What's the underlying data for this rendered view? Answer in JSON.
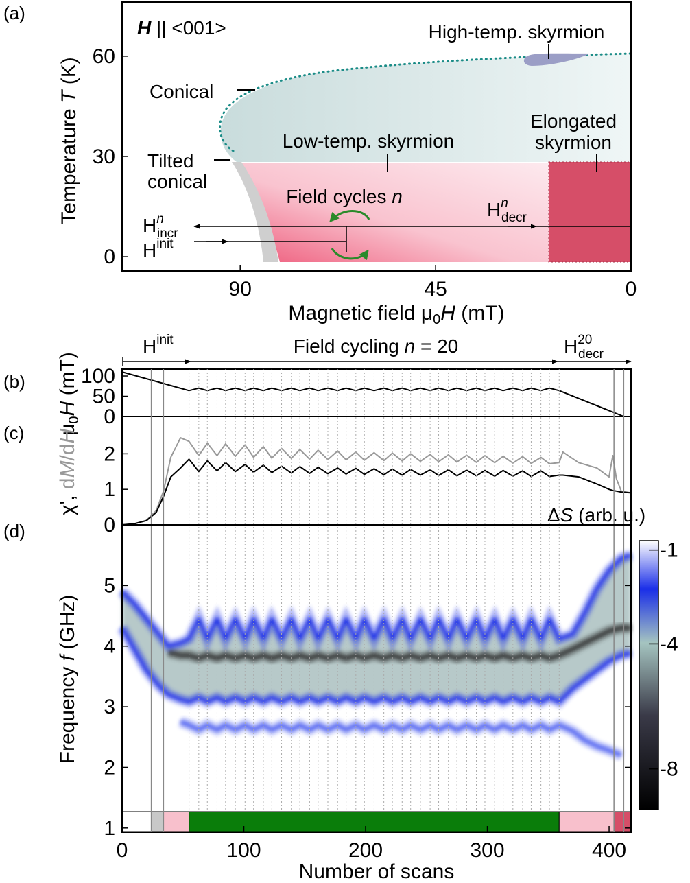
{
  "chart_data": [
    {
      "type": "phase-diagram",
      "panel": "(a)",
      "xlabel": [
        "Magnetic field μ",
        "0",
        "H",
        " (mT)"
      ],
      "ylabel": [
        "Temperature ",
        "T",
        " (K)"
      ],
      "xlim": [
        117.2,
        0
      ],
      "xticks": [
        90,
        45,
        0
      ],
      "ylim": [
        -4.3,
        76.2
      ],
      "yticks": [
        0,
        30,
        60
      ],
      "annotations": {
        "field_direction": [
          "H",
          " || <001>"
        ],
        "high_temp_skyrmion": "High-temp. skyrmion",
        "conical": "Conical",
        "low_temp_skyrmion": "Low-temp. skyrmion",
        "elongated_skyrmion": [
          "Elongated",
          "skyrmion"
        ],
        "tilted_conical": [
          "Tilted",
          "conical"
        ],
        "field_cycles": [
          "Field cycles ",
          "n"
        ],
        "h_incr": {
          "base": "H",
          "sup": "n",
          "sub": "incr"
        },
        "h_init": {
          "base": "H",
          "sup": "init"
        },
        "h_decr": {
          "base": "H",
          "sup": "n",
          "sub": "decr"
        }
      }
    },
    {
      "type": "line",
      "panel": "(b)",
      "ylabel": [
        "μ",
        "0",
        "H",
        " (mT)"
      ],
      "stages": [
        {
          "base": "H",
          "sup": "init"
        },
        [
          "Field cycling ",
          "n",
          " = 20"
        ],
        {
          "base": "H",
          "sup": "20",
          "sub": "decr"
        }
      ],
      "xlim": [
        0,
        418
      ],
      "ylim": [
        0,
        117
      ],
      "yticks": [
        0,
        50,
        100
      ],
      "color": "#000000",
      "x": [
        0,
        55,
        63,
        70,
        78,
        85,
        93,
        101,
        108,
        116,
        123,
        131,
        139,
        146,
        154,
        161,
        169,
        177,
        184,
        192,
        199,
        207,
        215,
        222,
        230,
        237,
        245,
        253,
        260,
        268,
        275,
        283,
        291,
        298,
        306,
        313,
        321,
        329,
        336,
        344,
        351,
        359,
        412
      ],
      "values": [
        110,
        64,
        70,
        64,
        70,
        64,
        70,
        64,
        70,
        64,
        70,
        64,
        70,
        64,
        70,
        64,
        70,
        64,
        70,
        64,
        70,
        64,
        70,
        64,
        70,
        64,
        70,
        64,
        70,
        64,
        70,
        64,
        70,
        64,
        70,
        64,
        70,
        64,
        70,
        64,
        70,
        64,
        0
      ]
    },
    {
      "type": "line",
      "panel": "(c)",
      "ylabel": [
        "χ', ",
        "d",
        "M",
        "/d",
        "H"
      ],
      "xlim": [
        0,
        418
      ],
      "ylim": [
        0,
        3.05
      ],
      "yticks": [
        0,
        1,
        2
      ],
      "x": [
        0,
        10,
        20,
        28,
        34,
        40,
        48,
        55,
        63,
        70,
        78,
        85,
        93,
        101,
        108,
        116,
        123,
        131,
        139,
        146,
        154,
        161,
        169,
        177,
        184,
        192,
        199,
        207,
        215,
        222,
        230,
        237,
        245,
        253,
        260,
        268,
        275,
        283,
        291,
        298,
        306,
        313,
        321,
        329,
        336,
        344,
        351,
        359,
        362,
        375,
        390,
        400,
        403,
        406,
        410,
        418
      ],
      "series": [
        {
          "color": "#000000",
          "values": [
            0,
            0.03,
            0.12,
            0.35,
            0.8,
            1.35,
            1.6,
            1.85,
            1.5,
            1.8,
            1.52,
            1.75,
            1.5,
            1.7,
            1.48,
            1.68,
            1.47,
            1.65,
            1.46,
            1.64,
            1.45,
            1.62,
            1.44,
            1.6,
            1.43,
            1.59,
            1.42,
            1.58,
            1.41,
            1.57,
            1.4,
            1.56,
            1.4,
            1.55,
            1.39,
            1.55,
            1.38,
            1.54,
            1.38,
            1.53,
            1.37,
            1.53,
            1.37,
            1.52,
            1.36,
            1.52,
            1.36,
            1.4,
            1.4,
            1.35,
            1.15,
            1.0,
            0.97,
            0.95,
            0.92,
            0.9
          ]
        },
        {
          "color": "#999999",
          "values": [
            0,
            0.03,
            0.13,
            0.4,
            0.95,
            1.9,
            2.45,
            2.35,
            1.95,
            2.3,
            1.95,
            2.28,
            1.93,
            2.25,
            1.9,
            2.2,
            1.88,
            2.15,
            1.87,
            2.12,
            1.85,
            2.1,
            1.84,
            2.08,
            1.83,
            2.05,
            1.82,
            2.03,
            1.81,
            2.02,
            1.8,
            2.0,
            1.79,
            1.98,
            1.78,
            1.97,
            1.77,
            1.96,
            1.76,
            1.95,
            1.75,
            1.93,
            1.74,
            1.92,
            1.73,
            1.9,
            1.72,
            1.75,
            2.05,
            1.75,
            1.6,
            1.35,
            1.95,
            1.3,
            0.95,
            0.9
          ]
        }
      ]
    },
    {
      "type": "modes",
      "panel": "(d)",
      "xlabel": "Number of scans",
      "ylabel": [
        "Frequency ",
        "f",
        " (GHz)"
      ],
      "xlim": [
        0,
        418
      ],
      "xticks": [
        0,
        100,
        200,
        300,
        400
      ],
      "ylim": [
        0.93,
        6.0
      ],
      "yticks": [
        1,
        2,
        3,
        4,
        5
      ],
      "x": [
        0,
        10,
        20,
        30,
        38,
        48,
        55,
        63,
        70,
        78,
        85,
        93,
        101,
        108,
        116,
        123,
        131,
        139,
        146,
        154,
        161,
        169,
        177,
        184,
        192,
        199,
        207,
        215,
        222,
        230,
        237,
        245,
        253,
        260,
        268,
        275,
        283,
        291,
        298,
        306,
        313,
        321,
        329,
        336,
        344,
        351,
        359,
        370,
        380,
        390,
        400,
        410,
        418
      ],
      "series": [
        {
          "color": "#1a2ee8",
          "values": [
            4.9,
            4.7,
            4.45,
            4.2,
            4.0,
            4.05,
            4.12,
            4.45,
            4.12,
            4.45,
            4.12,
            4.45,
            4.12,
            4.45,
            4.12,
            4.45,
            4.12,
            4.45,
            4.12,
            4.45,
            4.12,
            4.45,
            4.12,
            4.45,
            4.12,
            4.45,
            4.12,
            4.45,
            4.12,
            4.45,
            4.12,
            4.45,
            4.12,
            4.45,
            4.12,
            4.45,
            4.12,
            4.45,
            4.12,
            4.45,
            4.12,
            4.45,
            4.12,
            4.45,
            4.12,
            4.45,
            4.12,
            4.2,
            4.55,
            4.95,
            5.25,
            5.45,
            5.5
          ]
        },
        {
          "color": "#1a2ee8",
          "values": [
            4.3,
            3.95,
            3.6,
            3.35,
            3.2,
            3.12,
            3.08,
            3.15,
            3.08,
            3.15,
            3.08,
            3.15,
            3.08,
            3.15,
            3.08,
            3.15,
            3.08,
            3.15,
            3.08,
            3.15,
            3.08,
            3.15,
            3.08,
            3.15,
            3.08,
            3.15,
            3.08,
            3.15,
            3.08,
            3.15,
            3.08,
            3.15,
            3.08,
            3.15,
            3.08,
            3.15,
            3.08,
            3.15,
            3.08,
            3.15,
            3.08,
            3.15,
            3.08,
            3.15,
            3.08,
            3.15,
            3.08,
            3.3,
            3.45,
            3.6,
            3.75,
            3.85,
            3.88
          ]
        },
        {
          "color": "#2a2a2a",
          "values": [
            null,
            null,
            null,
            null,
            3.9,
            3.85,
            3.85,
            3.8,
            3.85,
            3.8,
            3.85,
            3.8,
            3.85,
            3.8,
            3.85,
            3.8,
            3.85,
            3.8,
            3.85,
            3.8,
            3.85,
            3.8,
            3.85,
            3.8,
            3.85,
            3.8,
            3.85,
            3.8,
            3.85,
            3.8,
            3.85,
            3.8,
            3.85,
            3.8,
            3.85,
            3.8,
            3.85,
            3.8,
            3.85,
            3.8,
            3.85,
            3.8,
            3.85,
            3.8,
            3.85,
            3.8,
            3.85,
            3.95,
            4.05,
            4.15,
            4.25,
            4.3,
            4.3
          ]
        },
        {
          "color": "#4a5cf0",
          "values": [
            null,
            null,
            null,
            null,
            null,
            2.75,
            2.7,
            2.62,
            2.7,
            2.62,
            2.7,
            2.62,
            2.7,
            2.62,
            2.7,
            2.62,
            2.7,
            2.62,
            2.7,
            2.62,
            2.7,
            2.62,
            2.7,
            2.62,
            2.7,
            2.62,
            2.7,
            2.62,
            2.7,
            2.62,
            2.7,
            2.62,
            2.7,
            2.62,
            2.7,
            2.62,
            2.7,
            2.62,
            2.7,
            2.62,
            2.7,
            2.62,
            2.7,
            2.62,
            2.7,
            2.62,
            2.7,
            2.6,
            2.45,
            2.35,
            2.28,
            2.2,
            null
          ]
        }
      ],
      "band_color": "#9fb8b8",
      "markers": [
        24,
        34,
        404,
        412
      ],
      "phase_bar": [
        {
          "start": 0,
          "end": 24,
          "color": "#ffffff"
        },
        {
          "start": 24,
          "end": 34,
          "color": "#c8c8c8"
        },
        {
          "start": 34,
          "end": 55,
          "color": "#f8c0cc"
        },
        {
          "start": 55,
          "end": 359,
          "color": "#0a7d0a"
        },
        {
          "start": 359,
          "end": 404,
          "color": "#f8c0cc"
        },
        {
          "start": 404,
          "end": 418,
          "color": "#d64e68"
        }
      ],
      "colorbar": {
        "label": [
          "Δ",
          "S",
          " (arb. u.)"
        ],
        "lim": [
          -9.3,
          -0.7
        ],
        "ticks": [
          -1,
          -4,
          -8
        ]
      }
    }
  ]
}
